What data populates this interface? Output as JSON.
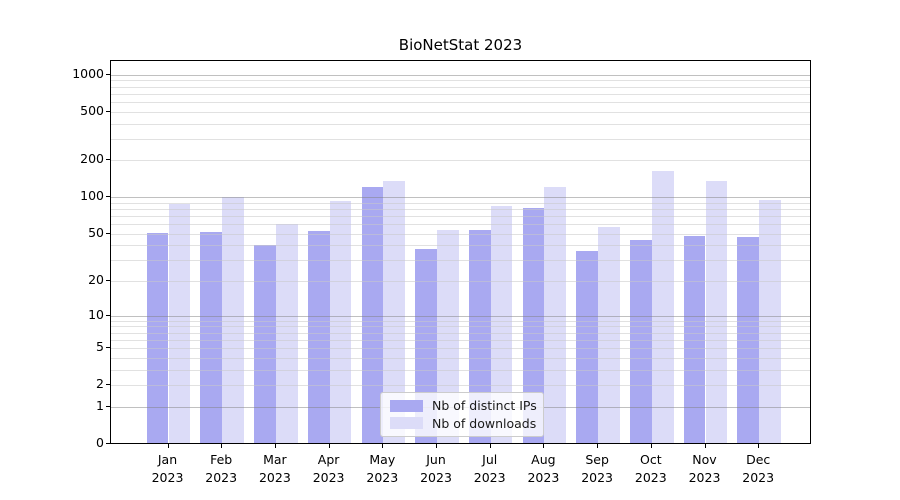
{
  "chart_data": {
    "type": "bar",
    "title": "BioNetStat 2023",
    "categories": [
      "Jan",
      "Feb",
      "Mar",
      "Apr",
      "May",
      "Jun",
      "Jul",
      "Aug",
      "Sep",
      "Oct",
      "Nov",
      "Dec"
    ],
    "year_label": "2023",
    "series": [
      {
        "name": "Nb of distinct IPs",
        "color": "#a9a9f1",
        "values": [
          51,
          52,
          40,
          53,
          122,
          37,
          54,
          82,
          36,
          44,
          48,
          47
        ]
      },
      {
        "name": "Nb of downloads",
        "color": "#dcdcf8",
        "values": [
          88,
          100,
          60,
          93,
          136,
          54,
          84,
          121,
          57,
          165,
          135,
          95
        ]
      }
    ],
    "y_scale": "log10(value+1)",
    "y_ticks": [
      0,
      1,
      2,
      5,
      10,
      20,
      50,
      100,
      200,
      500,
      1000
    ],
    "y_minor_gridlines": [
      2,
      3,
      4,
      5,
      6,
      7,
      8,
      9,
      20,
      30,
      40,
      50,
      60,
      70,
      80,
      90,
      200,
      300,
      400,
      500,
      600,
      700,
      800,
      900
    ],
    "y_major_gridlines": [
      1,
      10,
      100,
      1000
    ],
    "ylim": [
      0,
      1280
    ],
    "xlabel": "",
    "ylabel": "",
    "grid": "horizontal",
    "legend_position": "lower center",
    "axis_color": "#000000",
    "background_color": "#ffffff"
  }
}
